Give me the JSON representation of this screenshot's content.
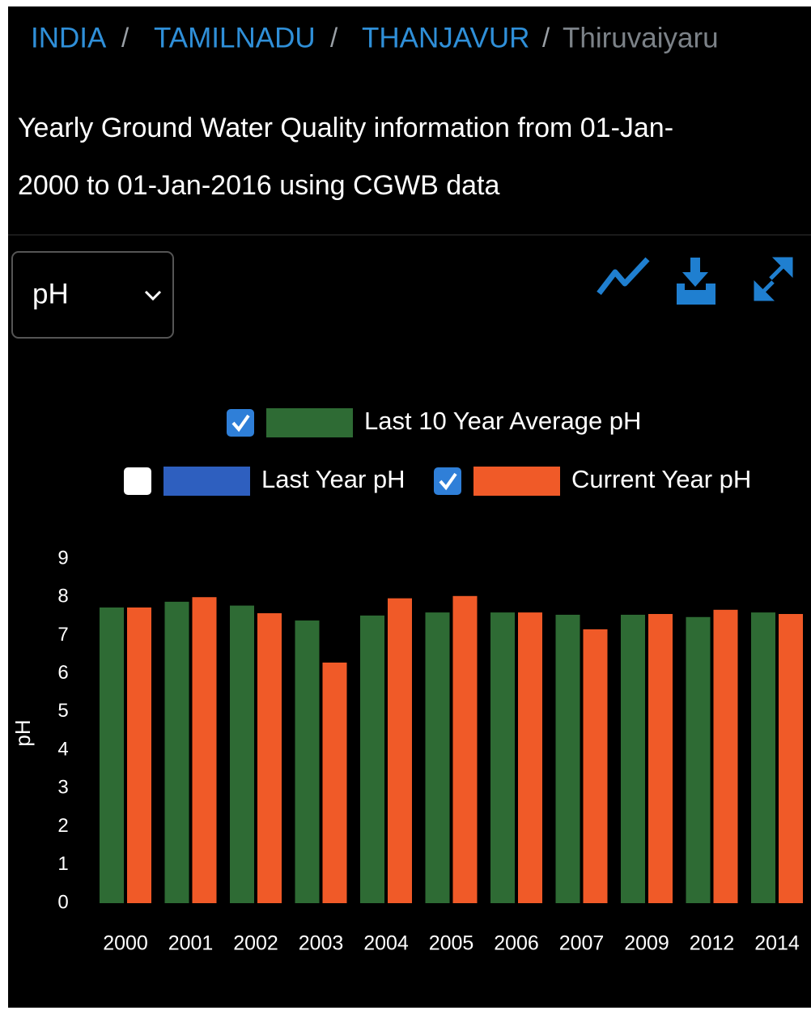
{
  "breadcrumb": [
    "INDIA",
    "TAMILNADU",
    "THANJAVUR",
    "Thiruvaiyaru"
  ],
  "title_lines": [
    "Yearly Ground Water Quality information from 01-Jan-",
    "2000 to 01-Jan-2016 using CGWB data"
  ],
  "parameter_select": "pH",
  "chart_data": {
    "type": "bar",
    "y_label": "pH",
    "categories": [
      "2000",
      "2001",
      "2002",
      "2003",
      "2004",
      "2005",
      "2006",
      "2007",
      "2009",
      "2012",
      "2014"
    ],
    "series": [
      {
        "name": "Last 10 Year Average pH",
        "color": "#2e6b34",
        "checked": true,
        "values": [
          7.73,
          7.88,
          7.78,
          7.39,
          7.52,
          7.6,
          7.6,
          7.54,
          7.54,
          7.48,
          7.6
        ]
      },
      {
        "name": "Last Year pH",
        "color": "#2e5fbf",
        "checked": false
      },
      {
        "name": "Current Year pH",
        "color": "#f05a28",
        "checked": true,
        "values": [
          7.73,
          8.0,
          7.58,
          6.29,
          7.97,
          8.03,
          7.6,
          7.16,
          7.56,
          7.67,
          7.56
        ]
      }
    ],
    "ylim": [
      0,
      9
    ],
    "yticks": [
      0,
      1,
      2,
      3,
      4,
      5,
      6,
      7,
      8,
      9
    ],
    "grid": false
  }
}
